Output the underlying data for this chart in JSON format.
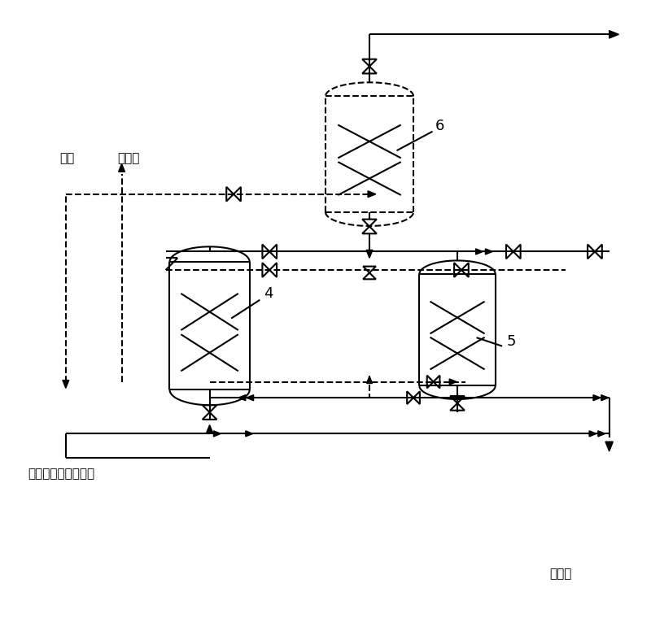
{
  "bg_color": "#ffffff",
  "line_color": "#000000",
  "label_nitrogen": "氮气",
  "label_safe": "安全处",
  "label_feed": "来自脱丙烷塔顶物流",
  "label_liquid_hydrocarbon": "液态烷",
  "label_4": "4",
  "label_5": "5",
  "label_6": "6",
  "figsize": [
    8.0,
    7.76
  ],
  "dpi": 100,
  "xlim": [
    0,
    800
  ],
  "ylim": [
    0,
    776
  ]
}
